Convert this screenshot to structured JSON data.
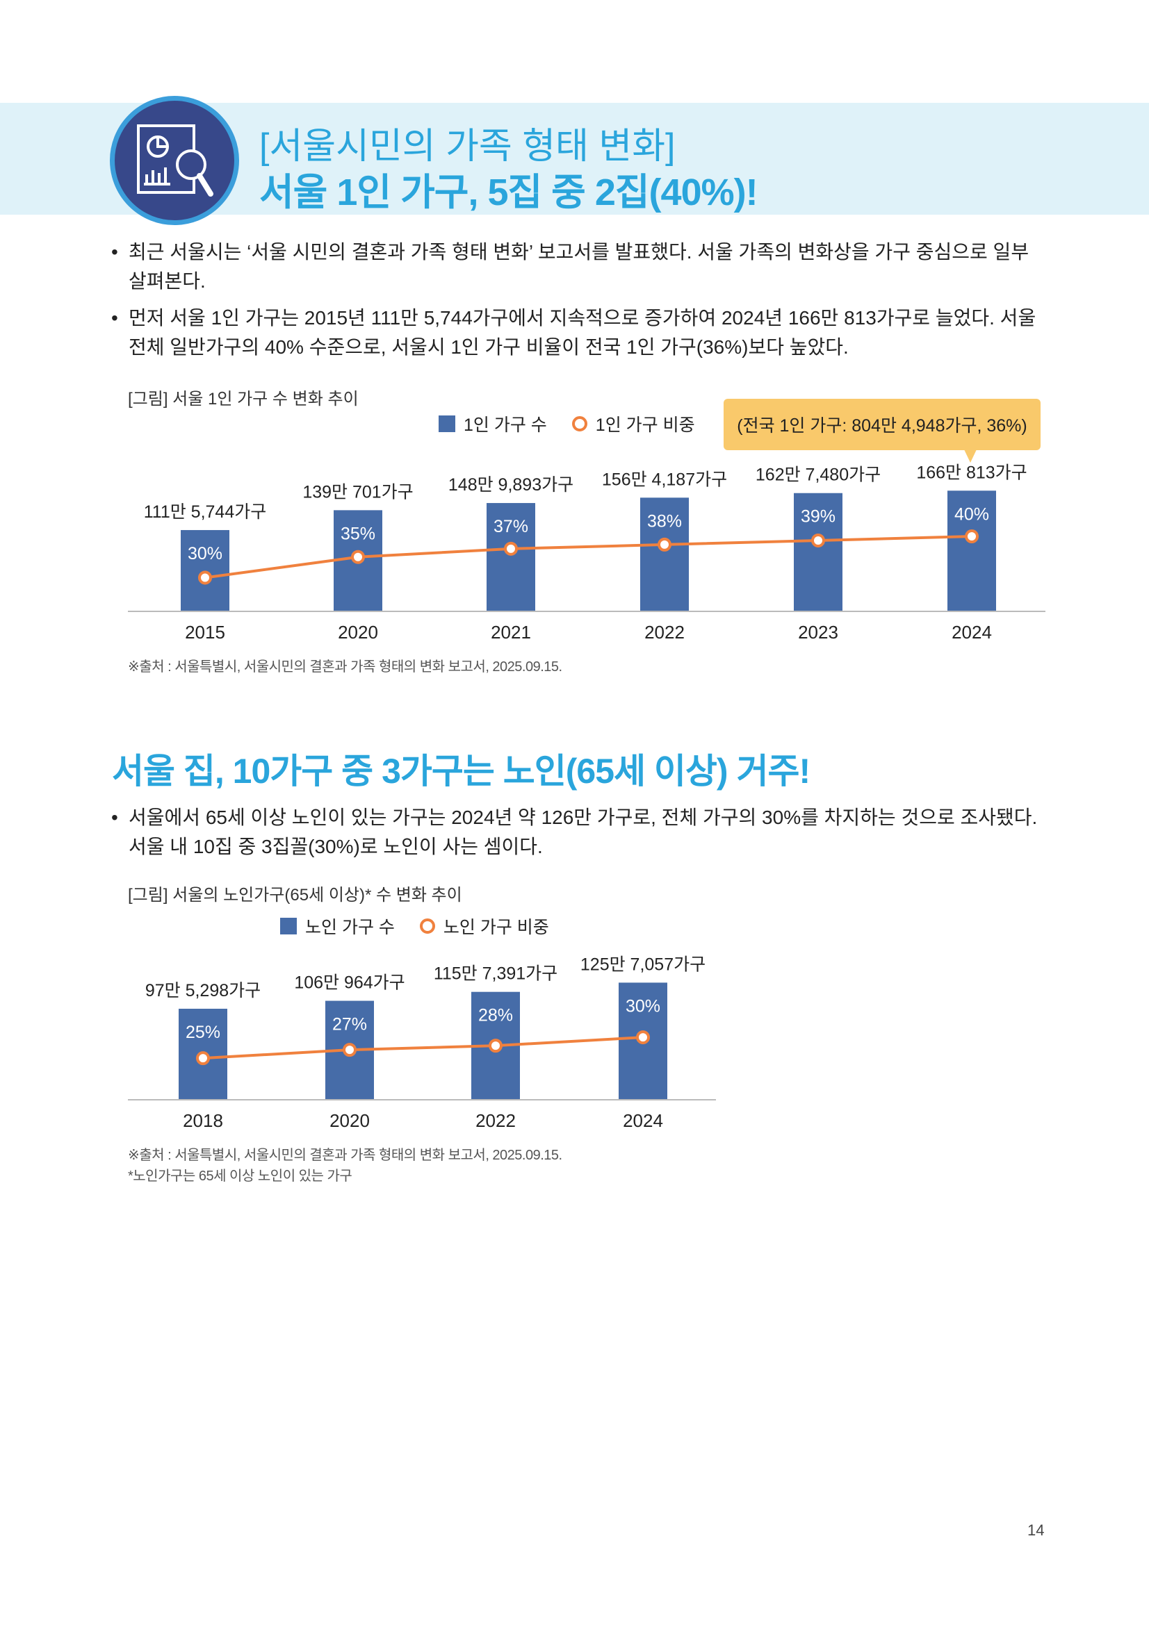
{
  "header": {
    "icon": "report-magnifier-icon",
    "title_line1": "[서울시민의 가족 형태 변화]",
    "title_line2": "서울 1인 가구, 5집 중 2집(40%)!"
  },
  "section1": {
    "bullets": [
      "최근 서울시는 ‘서울 시민의 결혼과 가족 형태 변화’ 보고서를 발표했다. 서울 가족의 변화상을 가구 중심으로 일부 살펴본다.",
      "먼저 서울 1인 가구는 2015년 111만 5,744가구에서 지속적으로 증가하여 2024년 166만 813가구로 늘었다. 서울 전체 일반가구의 40% 수준으로, 서울시 1인 가구 비율이 전국 1인 가구(36%)보다 높았다."
    ],
    "figure_caption": "[그림] 서울 1인 가구 수 변화 추이",
    "callout": "(전국 1인 가구: 804만 4,948가구, 36%)",
    "source": "※출처 : 서울특별시, 서울시민의 결혼과 가족 형태의 변화 보고서, 2025.09.15."
  },
  "section2": {
    "heading": "서울 집, 10가구 중 3가구는 노인(65세 이상) 거주!",
    "bullets": [
      "서울에서 65세 이상 노인이 있는 가구는 2024년 약 126만 가구로, 전체 가구의 30%를 차지하는 것으로 조사됐다. 서울 내 10집 중 3집꼴(30%)로 노인이 사는 셈이다."
    ],
    "figure_caption": "[그림] 서울의 노인가구(65세 이상)* 수 변화 추이",
    "source": "※출처 : 서울특별시, 서울시민의 결혼과 가족 형태의 변화 보고서, 2025.09.15.",
    "note": "*노인가구는 65세 이상 노인이 있는 가구"
  },
  "page_number": "14",
  "colors": {
    "bar": "#466ca8",
    "line": "#f0813e",
    "accent": "#2aa5dc",
    "callout": "#f9c96b"
  },
  "chart_data": [
    {
      "type": "bar",
      "title": "서울 1인 가구 수 변화 추이",
      "categories": [
        "2015",
        "2020",
        "2021",
        "2022",
        "2023",
        "2024"
      ],
      "legend": [
        "1인 가구 수",
        "1인 가구 비중"
      ],
      "legend_placement": "top-right",
      "series": [
        {
          "name": "1인 가구 수",
          "type": "bar",
          "unit": "만 가구",
          "values": [
            111.5744,
            139.0701,
            148.9893,
            156.4187,
            162.748,
            166.0813
          ],
          "labels": [
            "111만 5,744가구",
            "139만 701가구",
            "148만 9,893가구",
            "156만 4,187가구",
            "162만 7,480가구",
            "166만 813가구"
          ]
        },
        {
          "name": "1인 가구 비중",
          "type": "line",
          "unit": "%",
          "values": [
            30,
            35,
            37,
            38,
            39,
            40
          ],
          "labels": [
            "30%",
            "35%",
            "37%",
            "38%",
            "39%",
            "40%"
          ]
        }
      ],
      "ylim": [
        0,
        200
      ],
      "y2lim": [
        22,
        57
      ],
      "grid": false
    },
    {
      "type": "bar",
      "title": "서울의 노인가구(65세 이상)* 수 변화 추이",
      "categories": [
        "2018",
        "2020",
        "2022",
        "2024"
      ],
      "legend": [
        "노인 가구 수",
        "노인 가구 비중"
      ],
      "legend_placement": "top",
      "series": [
        {
          "name": "노인 가구 수",
          "type": "bar",
          "unit": "만 가구",
          "values": [
            97.5298,
            106.0964,
            115.7391,
            125.7057
          ],
          "labels": [
            "97만 5,298가구",
            "106만 964가구",
            "115만 7,391가구",
            "125만 7,057가구"
          ]
        },
        {
          "name": "노인 가구 비중",
          "type": "line",
          "unit": "%",
          "values": [
            25,
            27,
            28,
            30
          ],
          "labels": [
            "25%",
            "27%",
            "28%",
            "30%"
          ]
        }
      ],
      "ylim": [
        0,
        150
      ],
      "y2lim": [
        15.2,
        48.5
      ],
      "grid": false
    }
  ]
}
